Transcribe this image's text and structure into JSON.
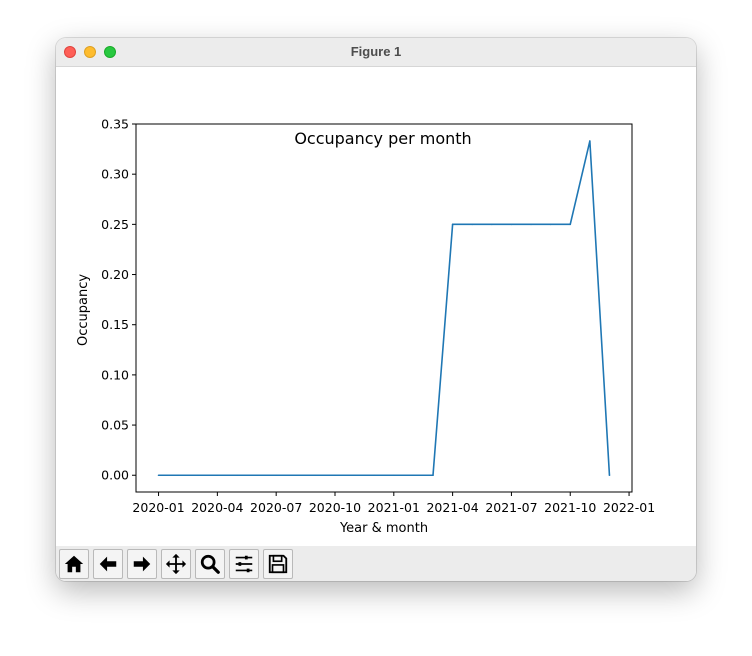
{
  "window": {
    "title": "Figure 1"
  },
  "toolbar": {
    "buttons": [
      {
        "name": "home-button",
        "icon": "home-icon"
      },
      {
        "name": "back-button",
        "icon": "arrow-left-icon"
      },
      {
        "name": "forward-button",
        "icon": "arrow-right-icon"
      },
      {
        "name": "pan-button",
        "icon": "move-icon"
      },
      {
        "name": "zoom-button",
        "icon": "magnifier-icon"
      },
      {
        "name": "configure-subplots-button",
        "icon": "sliders-icon"
      },
      {
        "name": "save-button",
        "icon": "floppy-disk-icon"
      }
    ]
  },
  "chart_data": {
    "type": "line",
    "title": "Occupancy per month",
    "xlabel": "Year & month",
    "ylabel": "Occupancy",
    "line_color": "#1f77b4",
    "x": [
      "2020-01",
      "2020-02",
      "2020-03",
      "2020-04",
      "2020-05",
      "2020-06",
      "2020-07",
      "2020-08",
      "2020-09",
      "2020-10",
      "2020-11",
      "2020-12",
      "2021-01",
      "2021-02",
      "2021-03",
      "2021-04",
      "2021-05",
      "2021-06",
      "2021-07",
      "2021-08",
      "2021-09",
      "2021-10",
      "2021-11",
      "2021-12"
    ],
    "series": [
      {
        "values": [
          0,
          0,
          0,
          0,
          0,
          0,
          0,
          0,
          0,
          0,
          0,
          0,
          0,
          0,
          0,
          0.25,
          0.25,
          0.25,
          0.25,
          0.25,
          0.25,
          0.25,
          0.333,
          0
        ]
      }
    ],
    "ylim": [
      -0.0167,
      0.35
    ],
    "yticks": [
      "0.00",
      "0.05",
      "0.10",
      "0.15",
      "0.20",
      "0.25",
      "0.30",
      "0.35"
    ],
    "xticks": [
      "2020-01",
      "2020-04",
      "2020-07",
      "2020-10",
      "2021-01",
      "2021-04",
      "2021-07",
      "2021-10",
      "2022-01"
    ],
    "grid": false
  }
}
